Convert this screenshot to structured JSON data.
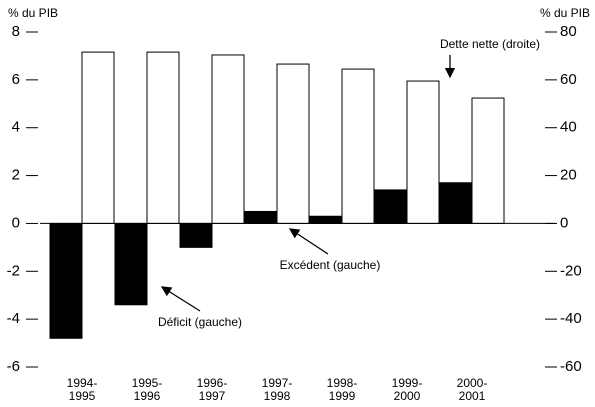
{
  "chart_data": {
    "type": "bar",
    "y_label": "% du PIB",
    "y2_label": "% du PIB",
    "categories": [
      "1994-\n1995",
      "1995-\n1996",
      "1996-\n1997",
      "1997-\n1998",
      "1998-\n1999",
      "1999-\n2000",
      "2000-\n2001"
    ],
    "series": [
      {
        "name": "Déficit / Excédent (gauche)",
        "color": "#000000",
        "values": [
          -4.8,
          -3.4,
          -1.0,
          0.5,
          0.3,
          1.4,
          1.7
        ]
      },
      {
        "name": "Dette nette (droite)",
        "color": "#ffffff",
        "axis": "y2",
        "values": [
          71.6,
          71.6,
          70.4,
          66.6,
          64.5,
          59.5,
          52.4
        ]
      }
    ],
    "ylim": [
      -6,
      8
    ],
    "yticks": [
      8,
      6,
      4,
      2,
      0,
      -2,
      -4,
      -6
    ],
    "y2lim": [
      -60,
      80
    ],
    "y2ticks": [
      80,
      60,
      40,
      20,
      0,
      -20,
      -40,
      -60
    ],
    "annotations": [
      "Dette nette (droite)",
      "Excédent (gauche)",
      "Déficit (gauche)"
    ]
  }
}
